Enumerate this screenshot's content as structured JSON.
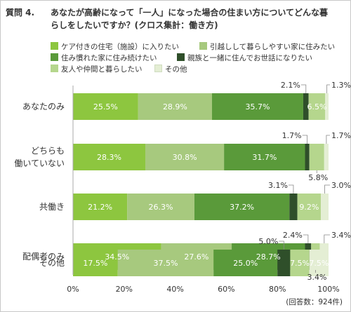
{
  "title": {
    "number": "質問 4.",
    "text": "あなたが高齢になって「一人」になった場合の住まい方についてどんな暮らしをしたいですか？(クロス集計：働き方)"
  },
  "footnote": "(回答数：924件)",
  "colors": [
    "#8dc63f",
    "#a7c97e",
    "#5a9a3a",
    "#2f4f2a",
    "#b5d68d",
    "#e4eed4"
  ],
  "chart_data": {
    "type": "bar",
    "orientation": "horizontal",
    "stacked": true,
    "percent": true,
    "categories": [
      "あなたのみ",
      "どちらも働いていない",
      "共働き",
      "配偶者のみ",
      "その他"
    ],
    "category_display": [
      [
        "あなたのみ"
      ],
      [
        "どちらも",
        "働いていない"
      ],
      [
        "共働き"
      ],
      [
        "配偶者のみ"
      ],
      [
        "その他"
      ]
    ],
    "series": [
      {
        "name": "ケア付きの住宅（施設）に入りたい",
        "values": [
          25.5,
          28.3,
          21.2,
          34.5,
          17.5
        ]
      },
      {
        "name": "引越しして暮らしやすい家に住みたい",
        "values": [
          28.9,
          30.8,
          26.3,
          27.6,
          37.5
        ]
      },
      {
        "name": "住み慣れた家に住み続けたい",
        "values": [
          35.7,
          31.7,
          37.2,
          28.7,
          25.0
        ]
      },
      {
        "name": "親族と一緒に住んでお世話になりたい",
        "values": [
          2.1,
          1.7,
          3.1,
          2.4,
          5.0
        ]
      },
      {
        "name": "友人や仲間と暮らしたい",
        "values": [
          6.5,
          5.8,
          9.2,
          3.4,
          7.5
        ]
      },
      {
        "name": "その他",
        "values": [
          1.3,
          1.7,
          3.0,
          3.4,
          7.5
        ]
      }
    ],
    "xlim": [
      0,
      100
    ],
    "xticks": [
      "0%",
      "20%",
      "40%",
      "60%",
      "80%",
      "100%"
    ],
    "grid": false,
    "legend": "top"
  }
}
